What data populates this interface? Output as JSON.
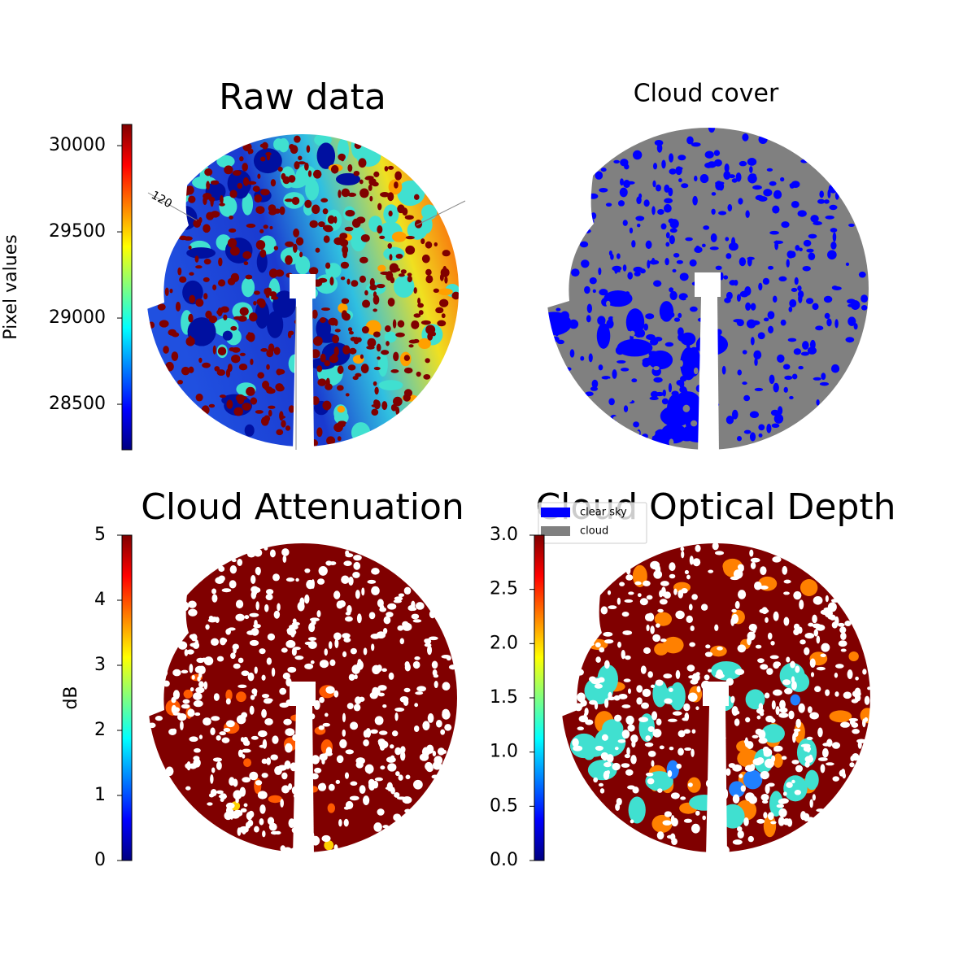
{
  "chart_data": [
    {
      "type": "image",
      "title": "Raw data",
      "colorbar_label": "Pixel values",
      "colormap": "jet",
      "ylim": [
        28236,
        30123
      ],
      "yticks": [
        28500,
        29000,
        29500,
        30000
      ],
      "annotations": [
        "120"
      ]
    },
    {
      "type": "image",
      "title": "Cloud cover",
      "series": [
        {
          "name": "clear sky",
          "color": "#0000ff"
        },
        {
          "name": "cloud",
          "color": "#808080"
        }
      ]
    },
    {
      "type": "image",
      "title": "Cloud Attenuation",
      "colorbar_label": "dB",
      "colormap": "jet",
      "ylim": [
        0,
        5
      ],
      "yticks": [
        0,
        1,
        2,
        3,
        4,
        5
      ]
    },
    {
      "type": "image",
      "title": "Cloud Optical Depth",
      "colormap": "jet",
      "ylim": [
        0,
        3
      ],
      "yticks": [
        {
          "value": 0,
          "label": "0.0"
        },
        0.5,
        {
          "value": 1,
          "label": "1.0"
        },
        1.5,
        {
          "value": 2,
          "label": "2.0"
        },
        2.5,
        {
          "value": 3,
          "label": "3.0"
        }
      ]
    }
  ]
}
